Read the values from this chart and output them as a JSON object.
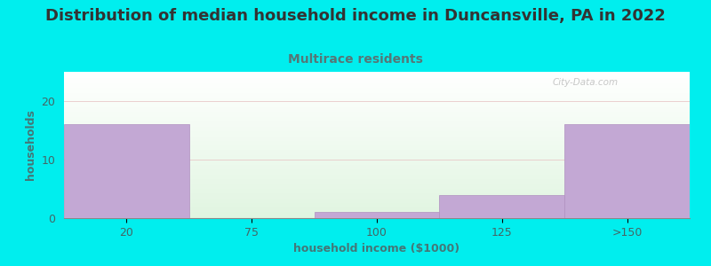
{
  "title": "Distribution of median household income in Duncansville, PA in 2022",
  "subtitle": "Multirace residents",
  "xlabel": "household income ($1000)",
  "ylabel": "households",
  "categories": [
    "20",
    "75",
    "100",
    "125",
    ">150"
  ],
  "values": [
    16,
    0,
    1,
    4,
    16
  ],
  "bar_color": "#C3A8D4",
  "bar_edge_color": "#B090C0",
  "background_outer": "#00EEEE",
  "title_color": "#333333",
  "subtitle_color": "#557777",
  "axis_label_color": "#447777",
  "tick_color": "#446666",
  "grid_color": "#DDDDDD",
  "ylim": [
    0,
    25
  ],
  "yticks": [
    0,
    10,
    20
  ],
  "watermark": "City-Data.com",
  "title_fontsize": 13,
  "subtitle_fontsize": 10,
  "label_fontsize": 9,
  "tick_fontsize": 9
}
